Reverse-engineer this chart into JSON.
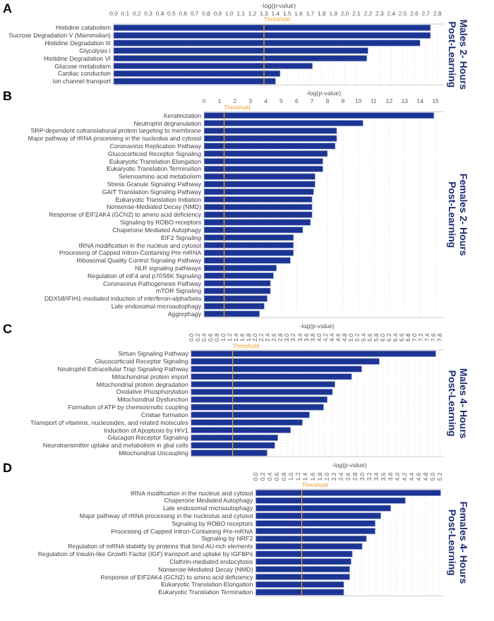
{
  "chart_data": [
    {
      "type": "bar",
      "orientation": "horizontal",
      "title": "Males 2- Hours\nPost-Learning",
      "xlabel": "-log(p-value)",
      "annotations": [
        "A"
      ],
      "color": "#1c3594",
      "grid": "x",
      "categories": [
        "Histidine catabolism",
        "Sucrose Degradation V (Mammalian)",
        "Histidine Degradation III",
        "Glycolysis I",
        "Histidine Degradation VI",
        "Glucose metabolism",
        "Cardiac conduction",
        "Ion channel transport"
      ],
      "values": [
        2.74,
        2.74,
        2.65,
        2.2,
        2.19,
        1.72,
        1.44,
        1.4
      ],
      "xlim": [
        0,
        2.85
      ],
      "xticks": [
        {
          "value": 0,
          "label": "0.0"
        },
        0.1,
        0.2,
        0.3,
        0.4,
        0.5,
        0.6,
        0.7,
        0.8,
        0.9,
        {
          "value": 1,
          "label": "1.0"
        },
        1.1,
        1.2,
        1.3,
        1.4,
        1.5,
        1.6,
        1.7,
        1.8,
        1.9,
        {
          "value": 2,
          "label": "2.0"
        },
        2.1,
        2.2,
        2.3,
        2.4,
        2.5,
        2.6,
        2.7,
        2.8
      ],
      "ref_lines": [
        {
          "axis": "x",
          "value": 1.3,
          "label": "Threshold",
          "color": "#f0a030"
        }
      ]
    },
    {
      "type": "bar",
      "orientation": "horizontal",
      "title": "Females 2- Hours\nPost-Learning",
      "xlabel": "-log(p-value)",
      "annotations": [
        "B"
      ],
      "color": "#1c3594",
      "grid": "x",
      "categories": [
        "Keratinization",
        "Neutrophil degranulation",
        "SRP-dependent cotranslational protein targeting to membrane",
        "Major pathway of rRNA processing in the nucleolus and cytosol",
        "Coronavirus Replication Pathway",
        "Glucocorticoid Receptor Signaling",
        "Eukaryotic Translation Elongation",
        "Eukaryotic Translation Termination",
        "Selenoamino acid metabolism",
        "Stress Granule Signaling Pathway",
        "GAIT Translation Signaling Pathway",
        "Eukaryotic Translation Initiation",
        "Nonsense-Mediated Decay (NMD)",
        "Response of EIF2AK4 (GCN2) to amino acid deficiency",
        "Signaling by ROBO receptors",
        "Chaperone Mediated Autophagy",
        "EIF2 Signaling",
        "tRNA modification in the nucleus and cytosol",
        "Processing of Capped Intron-Containing Pre-mRNA",
        "Ribosomal Quality Control Signaling Pathway",
        "NLR signaling pathways",
        "Regulation of eIF4 and p70S6K Signaling",
        "Coronavirus Pathogenesis Pathway",
        "mTOR Signaling",
        "DDX58/IFIH1-mediated induction of interferon-alpha/beta",
        "Late endosomal microautophagy",
        "Aggrephagy"
      ],
      "values": [
        14.9,
        10.3,
        8.6,
        8.6,
        8.5,
        8.0,
        7.7,
        7.7,
        7.2,
        7.2,
        7.1,
        7.0,
        7.0,
        7.0,
        6.9,
        6.4,
        5.8,
        5.8,
        5.8,
        5.6,
        4.7,
        4.5,
        4.3,
        4.3,
        4.1,
        3.9,
        3.6
      ],
      "xlim": [
        0,
        15.5
      ],
      "xticks": [
        0,
        1,
        2,
        3,
        4,
        5,
        6,
        7,
        8,
        9,
        10,
        11,
        12,
        13,
        14,
        15
      ],
      "ref_lines": [
        {
          "axis": "x",
          "value": 1.3,
          "label": "Threshold",
          "color": "#f0a030"
        }
      ]
    },
    {
      "type": "bar",
      "orientation": "horizontal",
      "title": "Males 4- Hours\nPost-Learning",
      "xlabel": "-log(p-value)",
      "annotations": [
        "C"
      ],
      "color": "#1c3594",
      "grid": "x",
      "categories": [
        "Sirtuin Signaling Pathway",
        "Glucocorticoid Receptor Signaling",
        "Neutrophil Extracellular Trap Signaling Pathway",
        "Mitochondrial protein import",
        "Mitochondrial protein degradation",
        "Oxidative Phosphorylation",
        "Mitochondrial Dysfunction",
        "Formation of ATP by chemiosmotic coupling",
        "Cristae formation",
        "Transport of vitamins, nucleosides, and related molecules",
        "Induction of Apoptosis by HIV1",
        "Glucagon Receptor Signaling",
        "Neurotransmitter uptake and metabolism in glial cells",
        "Mitochondrial Uncoupling"
      ],
      "values": [
        7.67,
        5.9,
        5.35,
        5.03,
        4.51,
        4.43,
        4.27,
        4.15,
        3.71,
        3.49,
        3.12,
        2.72,
        2.62,
        2.38
      ],
      "xlim": [
        0,
        7.9
      ],
      "xticks": [
        {
          "value": 0,
          "label": "0.0"
        },
        0.2,
        0.4,
        0.6,
        0.8,
        {
          "value": 1,
          "label": "1.0"
        },
        1.2,
        1.4,
        1.6,
        1.8,
        {
          "value": 2,
          "label": "2.0"
        },
        2.2,
        2.4,
        2.6,
        2.8,
        {
          "value": 3,
          "label": "3.0"
        },
        3.2,
        3.4,
        3.6,
        3.8,
        {
          "value": 4,
          "label": "4.0"
        },
        4.2,
        4.4,
        4.6,
        4.8,
        {
          "value": 5,
          "label": "5.0"
        },
        5.2,
        5.4,
        5.6,
        5.8,
        {
          "value": 6,
          "label": "6.0"
        },
        6.2,
        6.4,
        6.6,
        6.8,
        {
          "value": 7,
          "label": "7.0"
        },
        7.2,
        7.4,
        7.6,
        7.8
      ],
      "ref_lines": [
        {
          "axis": "x",
          "value": 1.3,
          "label": "Threshold",
          "color": "#f0a030"
        }
      ]
    },
    {
      "type": "bar",
      "orientation": "horizontal",
      "title": "Females 4- Hours\nPost-Learning",
      "xlabel": "-log(p-value)",
      "annotations": [
        "D"
      ],
      "color": "#1c3594",
      "grid": "x",
      "categories": [
        "tRNA modification in the nucleus and cytosol",
        "Chaperone Mediated Autophagy",
        "Late endosomal microautophagy",
        "Major pathway of rRNA processing in the nucleolus and cytosol",
        "Signaling by ROBO receptors",
        "Processing of Capped Intron-Containing Pre-mRNA",
        "Signaling by NRF2",
        "Regulation of mRNA stability by proteins that bind AU-rich elements",
        "Regulation of Insulin-like Growth Factor (IGF) transport and uptake by IGFBPs",
        "Clathrin-mediated endocytosis",
        "Nonsense-Mediated Decay (NMD)",
        "Response of EIF2AK4 (GCN2) to amino acid deficiency",
        "Eukaryotic Translation Elongation",
        "Eukaryotic Translation Termination"
      ],
      "values": [
        5.23,
        4.23,
        3.82,
        3.54,
        3.38,
        3.38,
        3.13,
        3.01,
        2.73,
        2.7,
        2.66,
        2.66,
        2.49,
        2.49
      ],
      "xlim": [
        0,
        5.3
      ],
      "xticks": [
        {
          "value": 0,
          "label": "0.0"
        },
        0.2,
        0.4,
        0.6,
        0.8,
        {
          "value": 1,
          "label": "1.0"
        },
        1.2,
        1.4,
        1.6,
        1.8,
        {
          "value": 2,
          "label": "2.0"
        },
        2.2,
        2.4,
        2.6,
        2.8,
        {
          "value": 3,
          "label": "3.0"
        },
        3.2,
        3.4,
        3.6,
        3.8,
        {
          "value": 4,
          "label": "4.0"
        },
        4.2,
        4.4,
        4.6,
        4.8,
        {
          "value": 5,
          "label": "5.0"
        },
        5.2
      ],
      "ref_lines": [
        {
          "axis": "x",
          "value": 1.3,
          "label": "Threshold",
          "color": "#f0a030"
        }
      ]
    }
  ]
}
